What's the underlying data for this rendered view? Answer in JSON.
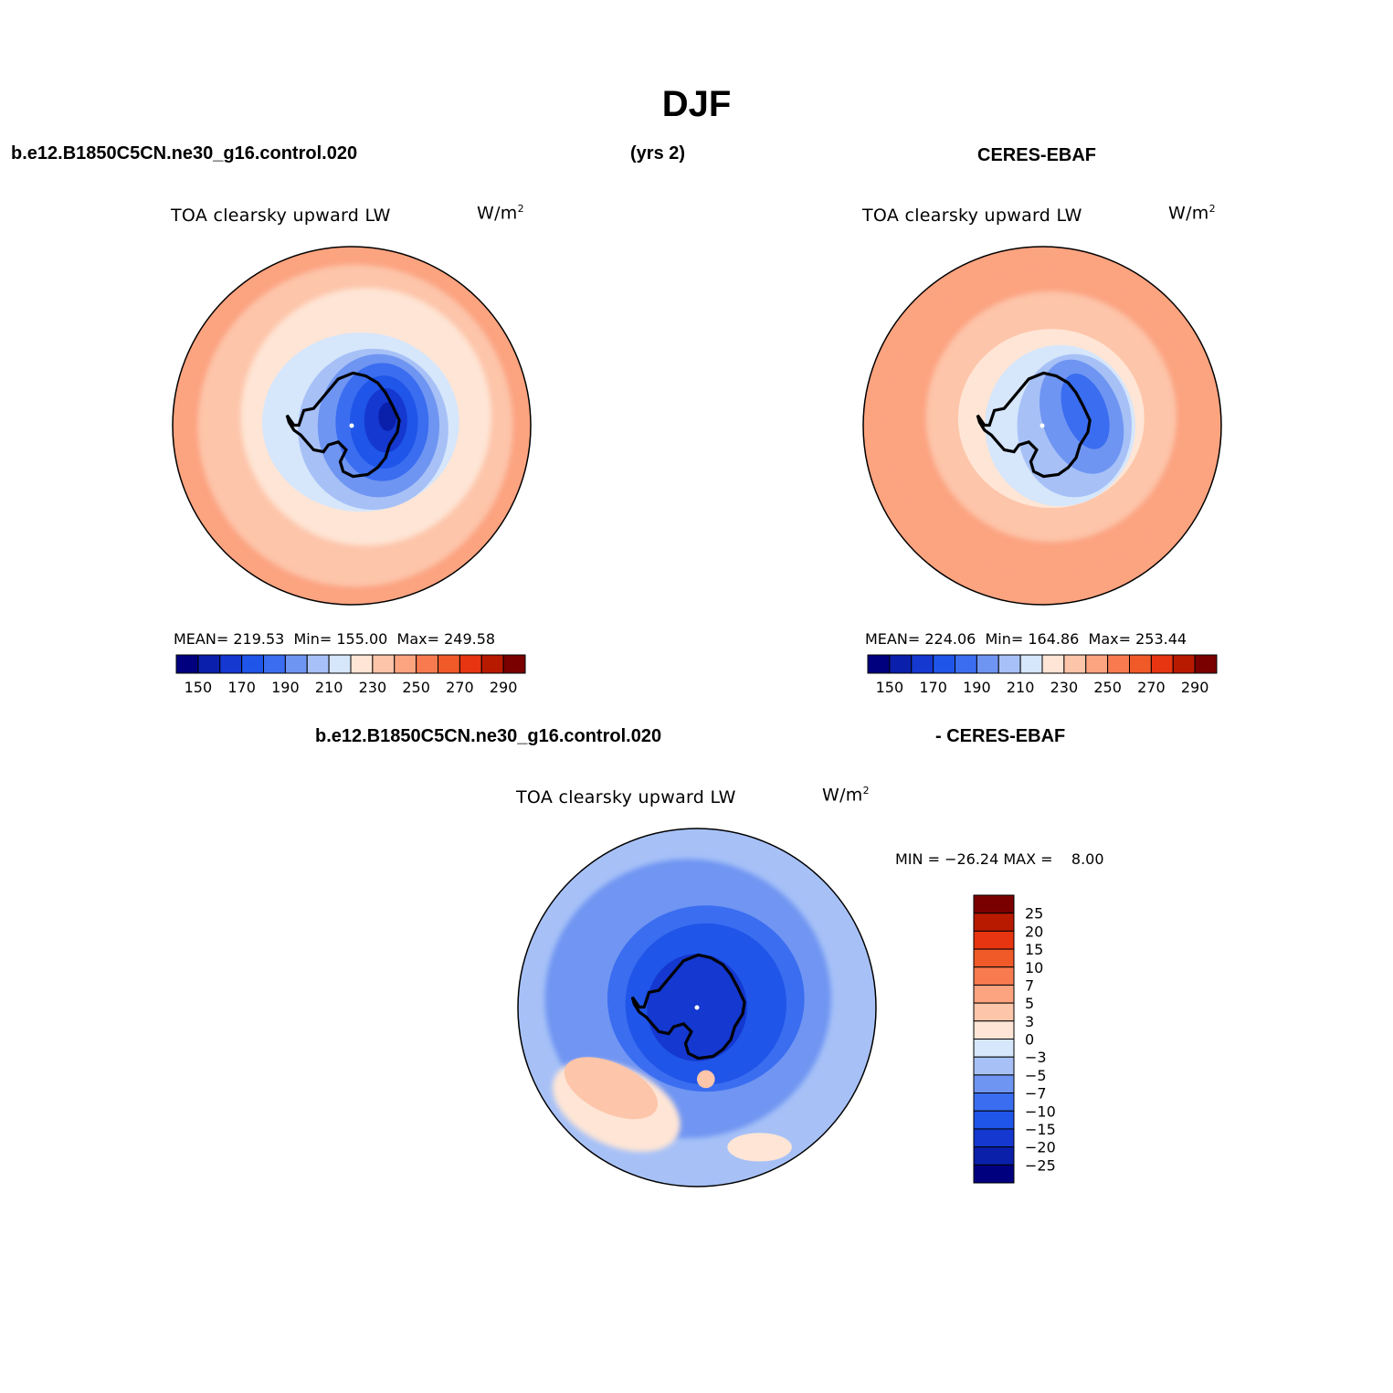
{
  "title": "DJF",
  "header": {
    "case_name": "b.e12.B1850C5CN.ne30_g16.control.020",
    "years": "(yrs 2)",
    "obs_name": "CERES-EBAF",
    "diff_case": "b.e12.B1850C5CN.ne30_g16.control.020",
    "diff_obs": "- CERES-EBAF"
  },
  "chart_data": [
    {
      "type": "heatmap",
      "projection": "south-polar-stereographic",
      "variable": "TOA clearsky upward LW",
      "units_base": "W/m",
      "units_exp": "2",
      "stats": {
        "mean_label": "MEAN=",
        "mean": "219.53",
        "min_label": "Min=",
        "min": "155.00",
        "max_label": "Max=",
        "max": "249.58"
      },
      "colorbar": {
        "orientation": "horizontal",
        "labels": [
          "150",
          "170",
          "190",
          "210",
          "230",
          "250",
          "270",
          "290"
        ],
        "levels": [
          150,
          160,
          170,
          180,
          190,
          200,
          210,
          220,
          230,
          240,
          250,
          260,
          270,
          280,
          290
        ],
        "colors": [
          "#00007f",
          "#0a1faa",
          "#1438d0",
          "#1f55e8",
          "#3a6df0",
          "#6f95f2",
          "#a7c1f7",
          "#d6e6fb",
          "#fee5d5",
          "#fdc5aa",
          "#fca380",
          "#f87b50",
          "#f05a28",
          "#e63510",
          "#b81a00",
          "#7a0000"
        ]
      },
      "field_summary": {
        "ocean_outer": 245,
        "ocean_mid": 232,
        "coast_band": 215,
        "interior": 165,
        "min_core": 155
      }
    },
    {
      "type": "heatmap",
      "projection": "south-polar-stereographic",
      "variable": "TOA clearsky upward LW",
      "units_base": "W/m",
      "units_exp": "2",
      "stats": {
        "mean_label": "MEAN=",
        "mean": "224.06",
        "min_label": "Min=",
        "min": "164.86",
        "max_label": "Max=",
        "max": "253.44"
      },
      "colorbar": {
        "orientation": "horizontal",
        "labels": [
          "150",
          "170",
          "190",
          "210",
          "230",
          "250",
          "270",
          "290"
        ],
        "levels": [
          150,
          160,
          170,
          180,
          190,
          200,
          210,
          220,
          230,
          240,
          250,
          260,
          270,
          280,
          290
        ],
        "colors": [
          "#00007f",
          "#0a1faa",
          "#1438d0",
          "#1f55e8",
          "#3a6df0",
          "#6f95f2",
          "#a7c1f7",
          "#d6e6fb",
          "#fee5d5",
          "#fdc5aa",
          "#fca380",
          "#f87b50",
          "#f05a28",
          "#e63510",
          "#b81a00",
          "#7a0000"
        ]
      },
      "field_summary": {
        "ocean_outer": 250,
        "ocean_mid": 238,
        "coast_band": 220,
        "interior": 180,
        "min_core": 165
      }
    },
    {
      "type": "heatmap",
      "projection": "south-polar-stereographic",
      "variable": "TOA clearsky upward LW",
      "units_base": "W/m",
      "units_exp": "2",
      "stats": {
        "text": "MIN = −26.24 MAX =    8.00",
        "min": "-26.24",
        "max": "8.00"
      },
      "colorbar": {
        "orientation": "vertical",
        "labels": [
          "25",
          "20",
          "15",
          "10",
          "7",
          "5",
          "3",
          "0",
          "−3",
          "−5",
          "−7",
          "−10",
          "−15",
          "−20",
          "−25"
        ],
        "levels": [
          25,
          20,
          15,
          10,
          7,
          5,
          3,
          0,
          -3,
          -5,
          -7,
          -10,
          -15,
          -20,
          -25
        ],
        "colors": [
          "#7a0000",
          "#b81a00",
          "#e63510",
          "#f05a28",
          "#f87b50",
          "#fca380",
          "#fdc5aa",
          "#fee5d5",
          "#d6e6fb",
          "#a7c1f7",
          "#6f95f2",
          "#3a6df0",
          "#1f55e8",
          "#1438d0",
          "#0a1faa",
          "#00007f"
        ]
      },
      "field_summary": {
        "ocean": -4,
        "ice_shelf": -12,
        "interior": -18,
        "warm_patch": 5
      }
    }
  ]
}
